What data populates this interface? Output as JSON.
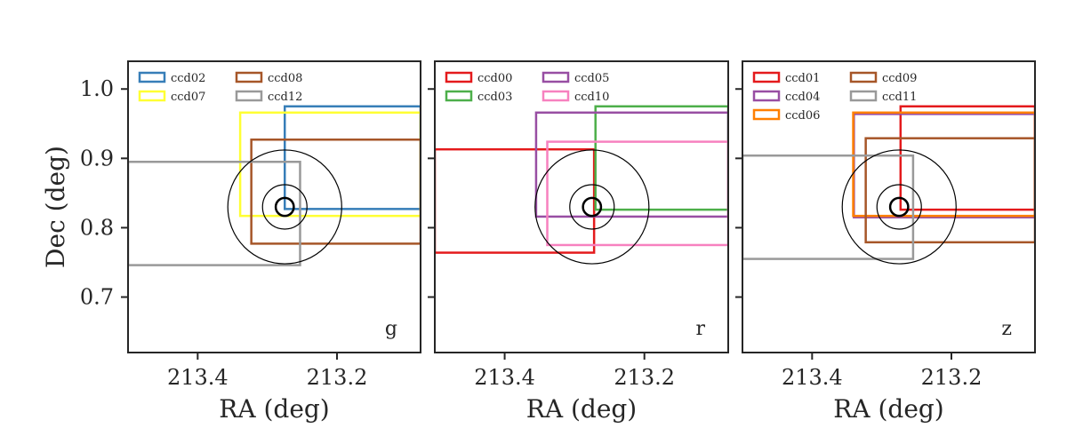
{
  "chart_data": [
    {
      "type": "footprint",
      "band": "g",
      "xlabel": "RA (deg)",
      "ylabel": "Dec (deg)",
      "xlim": [
        213.5,
        213.08
      ],
      "ylim": [
        0.62,
        1.04
      ],
      "xticks": [
        {
          "value": 213.4,
          "label": "213.4"
        },
        {
          "value": 213.2,
          "label": "213.2"
        }
      ],
      "yticks": [
        {
          "value": 1.0,
          "label": "1.0"
        },
        {
          "value": 0.9,
          "label": "0.9"
        },
        {
          "value": 0.8,
          "label": "0.8"
        },
        {
          "value": 0.7,
          "label": "0.7"
        }
      ],
      "target": {
        "ra": 213.275,
        "dec": 0.83,
        "radii_deg": [
          0.013,
          0.032,
          0.082
        ]
      },
      "series": [
        {
          "name": "ccd02",
          "color": "#377eb8",
          "ra_range": [
            213.275,
            213.08
          ],
          "dec_range": [
            0.827,
            0.975
          ]
        },
        {
          "name": "ccd07",
          "color": "#ffff33",
          "ra_range": [
            213.339,
            213.08
          ],
          "dec_range": [
            0.817,
            0.966
          ]
        },
        {
          "name": "ccd08",
          "color": "#a65628",
          "ra_range": [
            213.323,
            213.08
          ],
          "dec_range": [
            0.777,
            0.927
          ]
        },
        {
          "name": "ccd12",
          "color": "#999999",
          "ra_range": [
            213.5,
            213.253
          ],
          "dec_range": [
            0.746,
            0.895
          ]
        }
      ]
    },
    {
      "type": "footprint",
      "band": "r",
      "xlabel": "RA (deg)",
      "ylabel": "",
      "xlim": [
        213.5,
        213.08
      ],
      "ylim": [
        0.62,
        1.04
      ],
      "xticks": [
        {
          "value": 213.4,
          "label": "213.4"
        },
        {
          "value": 213.2,
          "label": "213.2"
        }
      ],
      "yticks": [
        {
          "value": 1.0,
          "label": ""
        },
        {
          "value": 0.9,
          "label": ""
        },
        {
          "value": 0.8,
          "label": ""
        },
        {
          "value": 0.7,
          "label": ""
        }
      ],
      "target": {
        "ra": 213.275,
        "dec": 0.83,
        "radii_deg": [
          0.013,
          0.032,
          0.082
        ]
      },
      "series": [
        {
          "name": "ccd00",
          "color": "#e41a1c",
          "ra_range": [
            213.5,
            213.272
          ],
          "dec_range": [
            0.764,
            0.913
          ]
        },
        {
          "name": "ccd03",
          "color": "#4daf4a",
          "ra_range": [
            213.27,
            213.08
          ],
          "dec_range": [
            0.826,
            0.975
          ]
        },
        {
          "name": "ccd05",
          "color": "#984ea3",
          "ra_range": [
            213.355,
            213.08
          ],
          "dec_range": [
            0.816,
            0.966
          ]
        },
        {
          "name": "ccd10",
          "color": "#f781bf",
          "ra_range": [
            213.339,
            213.08
          ],
          "dec_range": [
            0.775,
            0.924
          ]
        }
      ]
    },
    {
      "type": "footprint",
      "band": "z",
      "xlabel": "RA (deg)",
      "ylabel": "",
      "xlim": [
        213.5,
        213.08
      ],
      "ylim": [
        0.62,
        1.04
      ],
      "xticks": [
        {
          "value": 213.4,
          "label": "213.4"
        },
        {
          "value": 213.2,
          "label": "213.2"
        }
      ],
      "yticks": [
        {
          "value": 1.0,
          "label": ""
        },
        {
          "value": 0.9,
          "label": ""
        },
        {
          "value": 0.8,
          "label": ""
        },
        {
          "value": 0.7,
          "label": ""
        }
      ],
      "target": {
        "ra": 213.275,
        "dec": 0.83,
        "radii_deg": [
          0.013,
          0.032,
          0.082
        ]
      },
      "series": [
        {
          "name": "ccd01",
          "color": "#e41a1c",
          "ra_range": [
            213.273,
            213.08
          ],
          "dec_range": [
            0.826,
            0.975
          ]
        },
        {
          "name": "ccd04",
          "color": "#984ea3",
          "ra_range": [
            213.34,
            213.08
          ],
          "dec_range": [
            0.815,
            0.964
          ]
        },
        {
          "name": "ccd06",
          "color": "#ff7f00",
          "ra_range": [
            213.341,
            213.08
          ],
          "dec_range": [
            0.817,
            0.966
          ]
        },
        {
          "name": "ccd09",
          "color": "#a65628",
          "ra_range": [
            213.323,
            213.08
          ],
          "dec_range": [
            0.779,
            0.929
          ]
        },
        {
          "name": "ccd11",
          "color": "#999999",
          "ra_range": [
            213.5,
            213.255
          ],
          "dec_range": [
            0.755,
            0.904
          ]
        }
      ]
    }
  ]
}
